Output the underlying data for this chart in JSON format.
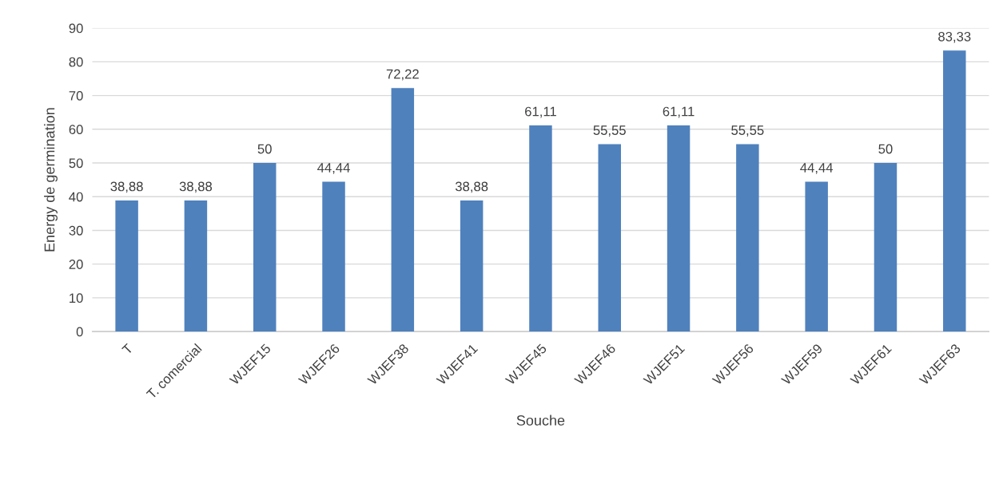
{
  "chart_data": {
    "type": "bar",
    "xlabel": "Souche",
    "ylabel": "Energy de germination",
    "categories": [
      "T",
      "T. comercial",
      "WJEF15",
      "WJEF26",
      "WJEF38",
      "WJEF41",
      "WJEF45",
      "WJEF46",
      "WJEF51",
      "WJEF56",
      "WJEF59",
      "WJEF61",
      "WJEF63"
    ],
    "values": [
      38.88,
      38.88,
      50,
      44.44,
      72.22,
      38.88,
      61.11,
      55.55,
      61.11,
      55.55,
      44.44,
      50,
      83.33
    ],
    "value_labels": [
      "38,88",
      "38,88",
      "50",
      "44,44",
      "72,22",
      "38,88",
      "61,11",
      "55,55",
      "61,11",
      "55,55",
      "44,44",
      "50",
      "83,33"
    ],
    "color": "#4f81bd",
    "ylim": [
      0,
      90
    ],
    "yticks": [
      0,
      10,
      20,
      30,
      40,
      50,
      60,
      70,
      80,
      90
    ],
    "grid": "y",
    "legend": false
  }
}
